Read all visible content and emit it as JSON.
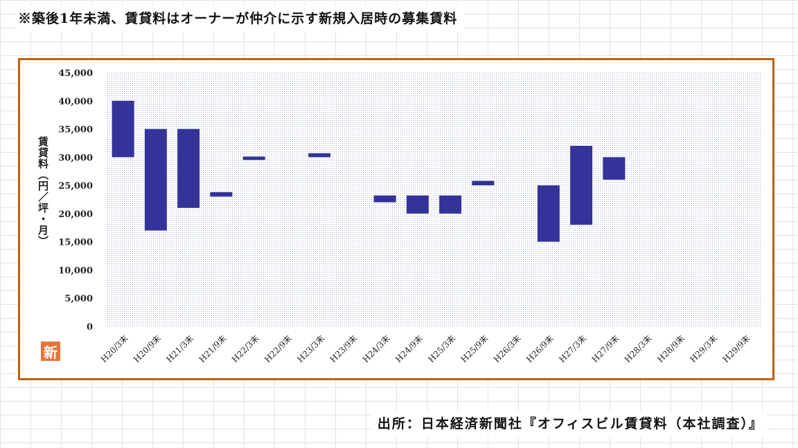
{
  "note": "※築後1年未満、賃貸料はオーナーが仲介に示す新規入居時の募集賃料",
  "source": "出所：日本経済新聞社『オフィスビル賃貸料（本社調査）』",
  "badge": "新",
  "colors": {
    "bar": "#333399",
    "frame": "#c0600a",
    "plot_dots": "#9aa6cc"
  },
  "chart_data": {
    "type": "bar",
    "subtype": "floating-range",
    "ylabel": "賃貸料（円／坪・月）",
    "ylim": [
      0,
      45000
    ],
    "yticks": [
      "45,000",
      "40,000",
      "35,000",
      "30,000",
      "25,000",
      "20,000",
      "15,000",
      "10,000",
      "5,000",
      "0"
    ],
    "categories": [
      "H20/3末",
      "H20/9末",
      "H21/3末",
      "H21/9末",
      "H22/3末",
      "H22/9末",
      "H23/3末",
      "H23/9末",
      "H24/3末",
      "H24/9末",
      "H25/3末",
      "H25/9末",
      "H26/3末",
      "H26/9末",
      "H27/3末",
      "H27/9末",
      "H28/3末",
      "H28/9末",
      "H29/3末",
      "H29/9末"
    ],
    "ranges": [
      [
        30000,
        40000
      ],
      [
        17000,
        35000
      ],
      [
        21000,
        35000
      ],
      [
        23000,
        23800
      ],
      [
        29500,
        30100
      ],
      null,
      [
        30000,
        30700
      ],
      null,
      [
        22000,
        23200
      ],
      [
        20000,
        23200
      ],
      [
        20000,
        23200
      ],
      [
        25000,
        25800
      ],
      null,
      [
        15000,
        25000
      ],
      [
        18000,
        32000
      ],
      [
        26000,
        30000
      ],
      null,
      null,
      null,
      null
    ],
    "grid": false,
    "legend": "none"
  }
}
